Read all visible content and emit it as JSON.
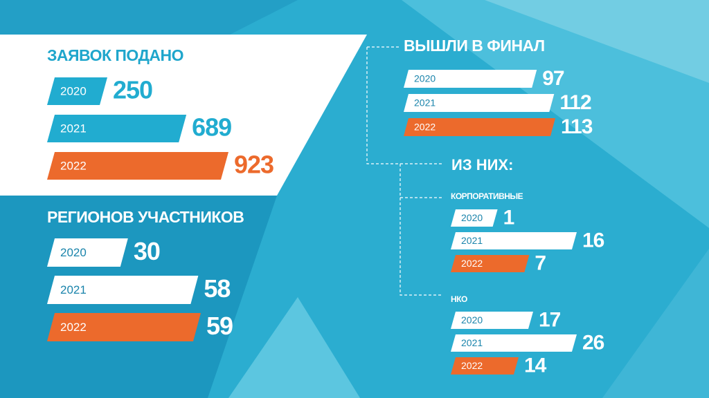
{
  "chart_data": [
    {
      "type": "bar",
      "orientation": "horizontal",
      "title": "ЗАЯВОК ПОДАНО",
      "categories": [
        "2020",
        "2021",
        "2022"
      ],
      "values": [
        250,
        689,
        923
      ],
      "colors": [
        "#21acd0",
        "#21acd0",
        "#ec6a2c"
      ]
    },
    {
      "type": "bar",
      "orientation": "horizontal",
      "title": "РЕГИОНОВ УЧАСТНИКОВ",
      "categories": [
        "2020",
        "2021",
        "2022"
      ],
      "values": [
        30,
        58,
        59
      ],
      "colors": [
        "#ffffff",
        "#ffffff",
        "#ec6a2c"
      ]
    },
    {
      "type": "bar",
      "orientation": "horizontal",
      "title": "ВЫШЛИ В ФИНАЛ",
      "annotation": "ИЗ НИХ:",
      "categories": [
        "2020",
        "2021",
        "2022"
      ],
      "values": [
        97,
        112,
        113
      ],
      "colors": [
        "#ffffff",
        "#ffffff",
        "#ec6a2c"
      ]
    },
    {
      "type": "bar",
      "orientation": "horizontal",
      "title": "КОРПОРАТИВНЫЕ",
      "categories": [
        "2020",
        "2021",
        "2022"
      ],
      "values": [
        1,
        16,
        7
      ],
      "colors": [
        "#ffffff",
        "#ffffff",
        "#ec6a2c"
      ]
    },
    {
      "type": "bar",
      "orientation": "horizontal",
      "title": "НКО",
      "categories": [
        "2020",
        "2021",
        "2022"
      ],
      "values": [
        17,
        26,
        14
      ],
      "colors": [
        "#ffffff",
        "#ffffff",
        "#ec6a2c"
      ]
    }
  ]
}
